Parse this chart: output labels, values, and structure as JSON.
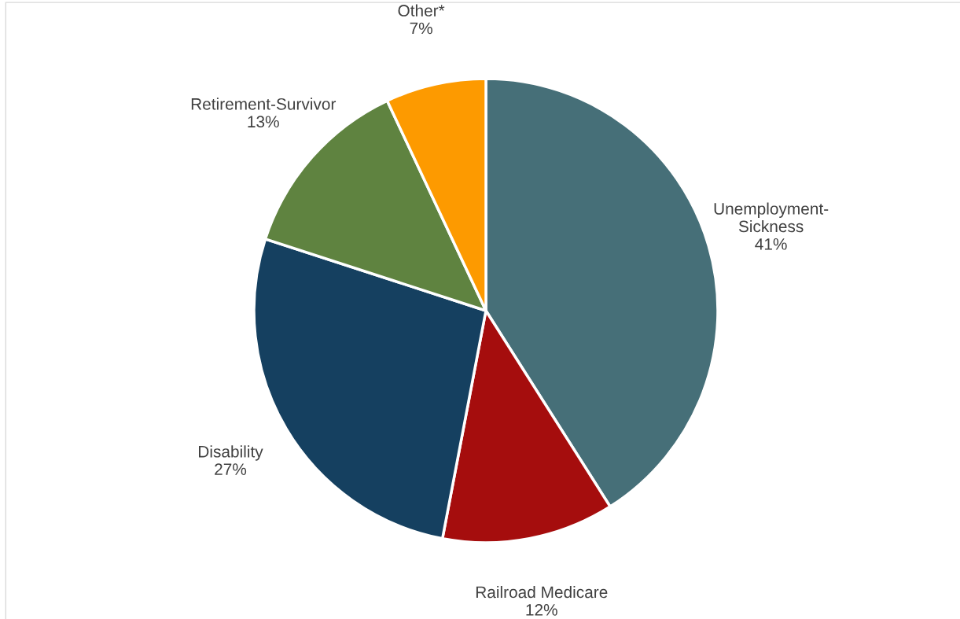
{
  "chart_data": {
    "type": "pie",
    "categories": [
      "Unemployment-\nSickness",
      "Railroad Medicare",
      "Disability",
      "Retirement-Survivor",
      "Other*"
    ],
    "values": [
      41,
      12,
      27,
      13,
      7
    ],
    "value_labels": [
      "41%",
      "12%",
      "27%",
      "13%",
      "7%"
    ],
    "colors": [
      "#466f78",
      "#a50d0d",
      "#154060",
      "#5f8340",
      "#fd9a00"
    ],
    "legend": false
  }
}
